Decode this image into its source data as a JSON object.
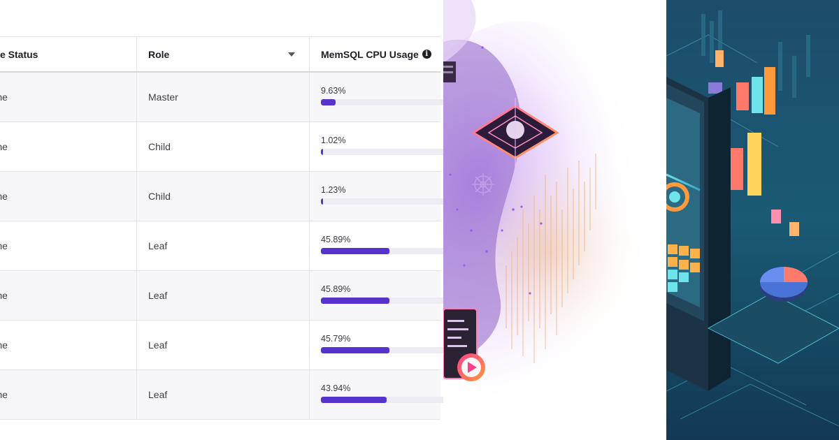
{
  "table": {
    "headers": {
      "status": "on Instance Status",
      "role": "Role",
      "cpu": "MemSQL CPU Usage"
    },
    "rows": [
      {
        "status": "titions Online",
        "role": "Master",
        "cpu_label": "9.63%",
        "cpu_value": 9.63
      },
      {
        "status": "titions Online",
        "role": "Child",
        "cpu_label": "1.02%",
        "cpu_value": 1.02
      },
      {
        "status": "titions Online",
        "role": "Child",
        "cpu_label": "1.23%",
        "cpu_value": 1.23
      },
      {
        "status": "titions Online",
        "role": "Leaf",
        "cpu_label": "45.89%",
        "cpu_value": 45.89
      },
      {
        "status": "titions Online",
        "role": "Leaf",
        "cpu_label": "45.89%",
        "cpu_value": 45.89
      },
      {
        "status": "titions Online",
        "role": "Leaf",
        "cpu_label": "45.79%",
        "cpu_value": 45.79
      },
      {
        "status": "titions Online",
        "role": "Leaf",
        "cpu_label": "43.94%",
        "cpu_value": 43.94
      }
    ]
  },
  "icons": {
    "role_sort": "chevron-down-icon",
    "cpu_info": "info-icon",
    "play": "play-icon"
  },
  "colors": {
    "bar_fill": "#5533cc",
    "bar_track": "#ececf2",
    "accent_purple": "#9b4dff",
    "accent_orange": "#ff8a3d",
    "illustration_bg": "#163f5c"
  }
}
